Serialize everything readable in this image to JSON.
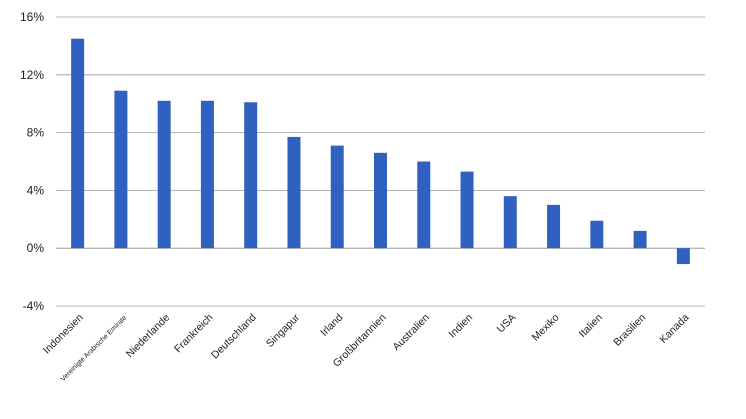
{
  "chart_data": {
    "type": "bar",
    "title": "",
    "source": "",
    "xlabel": "",
    "ylabel": "",
    "categories": [
      "Indonesien",
      "Vereinigte Arabische Emirate",
      "Niederlande",
      "Frankreich",
      "Deutschland",
      "Singapur",
      "Irland",
      "Großbritannien",
      "Australien",
      "Indien",
      "USA",
      "Mexiko",
      "Italien",
      "Brasilien",
      "Kanada"
    ],
    "values": [
      14.5,
      10.9,
      10.2,
      10.2,
      10.1,
      7.7,
      7.1,
      6.6,
      6.0,
      5.3,
      3.6,
      3.0,
      1.9,
      1.2,
      -1.1
    ],
    "ylim": [
      -4,
      16
    ],
    "yticks": [
      -4,
      0,
      4,
      8,
      12,
      16
    ],
    "ytick_labels": [
      "-4%",
      "0%",
      "4%",
      "8%",
      "12%",
      "16%"
    ],
    "bar_color": "#3060c0",
    "grid": true,
    "legend": "none"
  }
}
